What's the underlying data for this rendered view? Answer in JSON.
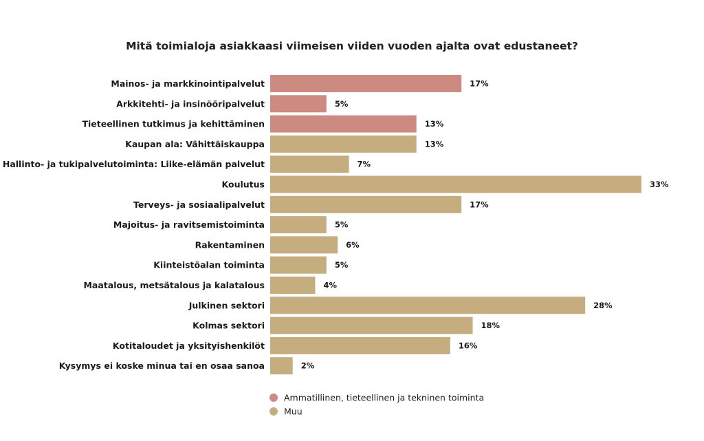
{
  "chart_data": {
    "type": "bar",
    "orientation": "horizontal",
    "title": "Mitä toimialoja asiakkaasi viimeisen viiden vuoden ajalta ovat edustaneet?",
    "categories": [
      "Mainos- ja markkinointipalvelut",
      "Arkkitehti- ja insinööripalvelut",
      "Tieteellinen tutkimus ja kehittäminen",
      "Kaupan ala: Vähittäiskauppa",
      "Hallinto- ja tukipalvelutoiminta: Liike-elämän palvelut",
      "Koulutus",
      "Terveys- ja sosiaalipalvelut",
      "Majoitus- ja ravitsemistoiminta",
      "Rakentaminen",
      "Kiinteistöalan toiminta",
      "Maatalous, metsätalous ja kalatalous",
      "Julkinen sektori",
      "Kolmas sektori",
      "Kotitaloudet ja yksityishenkilöt",
      "Kysymys ei koske minua tai en osaa sanoa"
    ],
    "values": [
      17,
      5,
      13,
      13,
      7,
      33,
      17,
      5,
      6,
      5,
      4,
      28,
      18,
      16,
      2
    ],
    "value_labels": [
      "17%",
      "5%",
      "13%",
      "13%",
      "7%",
      "33%",
      "17%",
      "5%",
      "6%",
      "5%",
      "4%",
      "28%",
      "18%",
      "16%",
      "2%"
    ],
    "groups": [
      0,
      0,
      0,
      1,
      1,
      1,
      1,
      1,
      1,
      1,
      1,
      1,
      1,
      1,
      1
    ],
    "legend": [
      {
        "name": "Ammatillinen, tieteellinen ja tekninen toiminta",
        "color": "#cc8a80"
      },
      {
        "name": "Muu",
        "color": "#c5ad80"
      }
    ],
    "legend_position": "bottom-center",
    "unit": "%",
    "xlim": [
      0,
      33
    ],
    "grid": false
  }
}
